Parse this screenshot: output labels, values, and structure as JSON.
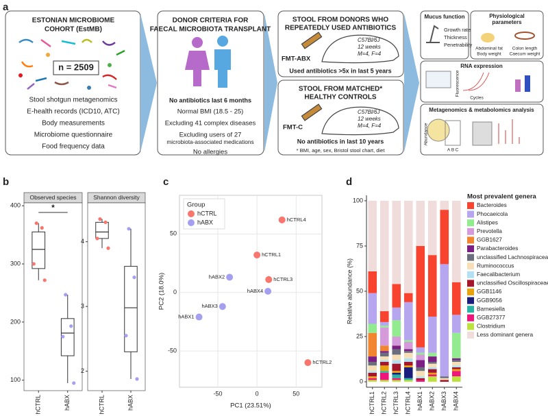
{
  "panel_labels": [
    "a",
    "b",
    "c",
    "d"
  ],
  "panel_a": {
    "cohort": {
      "title": [
        "ESTONIAN MICROBIOME",
        "COHORT (EstMB)"
      ],
      "n": "n = 2509",
      "items": [
        "Stool shotgun metagenomics",
        "E-health records (ICD10, ATC)",
        "Body measurements",
        "Microbiome questionnaire",
        "Food frequency data"
      ]
    },
    "donor_criteria": {
      "title": [
        "DONOR CRITERIA FOR",
        "FAECAL MICROBIOTA TRANSPLANT"
      ],
      "highlight": "No antibiotics last 6 months",
      "items": [
        "Normal BMI (18.5 - 25)",
        "Excluding 41 complex diseases",
        "Excluding users of 27",
        "microbiota-associated medications",
        "No allergies"
      ]
    },
    "abx_group": {
      "title": [
        "STOOL FROM DONORS WHO",
        "REPEATEDLY USED ANTIBIOTICS"
      ],
      "label": "FMT-ABX",
      "mouse": [
        "C57Bl/6J",
        "12 weeks",
        "M=4, F=4"
      ],
      "criterion": "Used antibiotics >5x in last 5 years"
    },
    "control_group": {
      "title": [
        "STOOL FROM MATCHED*",
        "HEALTHY CONTROLS"
      ],
      "label": "FMT-C",
      "mouse": [
        "C57Bl/6J",
        "12 weeks",
        "M=4, F=4"
      ],
      "criterion": "No antibiotics in last 10 years",
      "footnote": "* BMI, age, sex, Bristol stool chart, diet"
    },
    "outcomes": {
      "mucus": {
        "title": "Mucus function",
        "items": [
          "Growth rate",
          "Thickness",
          "Penetrability"
        ]
      },
      "physiology": {
        "title": [
          "Physiological",
          "parameters"
        ],
        "items": [
          "Abdominal fat",
          "Body weight",
          "Colon length",
          "Caecum weight"
        ]
      },
      "rna": {
        "title": "RNA expression",
        "axes": [
          "Fluorescence",
          "Cycles"
        ]
      },
      "omics": {
        "title": "Metagenomics & metabolomics analysis",
        "axis": "Abundance",
        "columns": [
          "A",
          "B",
          "C"
        ]
      }
    }
  },
  "chart_data": [
    {
      "type": "box",
      "title": "Observed species",
      "categories": [
        "hCTRL",
        "hABX"
      ],
      "point_colors": [
        "#f8766d",
        "#a59ff0"
      ],
      "boxes": [
        {
          "whisker_low": 272,
          "q1": 292,
          "median": 325,
          "q3": 355,
          "whisker_high": 370,
          "points": [
            370,
            362,
            300,
            272
          ]
        },
        {
          "whisker_low": 95,
          "q1": 142,
          "median": 181,
          "q3": 206,
          "whisker_high": 247,
          "points": [
            247,
            193,
            175,
            95
          ]
        }
      ],
      "annotation": "*",
      "ylim": [
        82,
        405
      ],
      "yticks": [
        100,
        200,
        300,
        400
      ]
    },
    {
      "type": "box",
      "title": "Shannon diversity",
      "categories": [
        "hCTRL",
        "hABX"
      ],
      "point_colors": [
        "#f8766d",
        "#a59ff0"
      ],
      "boxes": [
        {
          "whisker_low": 3.9,
          "q1": 4.05,
          "median": 4.15,
          "q3": 4.3,
          "whisker_high": 4.35,
          "points": [
            4.35,
            4.3,
            4.05,
            3.9
          ]
        },
        {
          "whisker_low": 1.88,
          "q1": 2.3,
          "median": 2.98,
          "q3": 3.62,
          "whisker_high": 4.2,
          "points": [
            4.2,
            3.45,
            2.55,
            1.88
          ]
        }
      ],
      "ylim": [
        1.7,
        4.6
      ],
      "yticks": [
        2,
        3,
        4
      ]
    },
    {
      "type": "scatter",
      "xlabel": "PC1 (23.51%)",
      "ylabel": "PC2 (18.0%)",
      "legend_title": "Group",
      "legend": "top-left",
      "grid": true,
      "series": [
        {
          "name": "hCTRL",
          "color": "#f8766d",
          "labels": [
            "hCTRL1",
            "hCTRL2",
            "hCTRL3",
            "hCTRL4"
          ],
          "x": [
            0,
            65,
            15,
            32
          ],
          "y": [
            32,
            -60,
            11,
            62
          ]
        },
        {
          "name": "hABX",
          "color": "#a59ff0",
          "labels": [
            "hABX1",
            "hABX2",
            "hABX3",
            "hABX4"
          ],
          "x": [
            -74,
            -35,
            -44,
            14
          ],
          "y": [
            -21,
            13,
            -12,
            1
          ]
        }
      ],
      "xlim": [
        -99,
        83
      ],
      "ylim": [
        -81,
        83
      ],
      "xticks": [
        -50,
        0,
        50
      ],
      "yticks": [
        -50,
        0,
        50
      ]
    },
    {
      "type": "stacked-bar",
      "ylabel": "Relative abundance (%)",
      "legend_title": "Most prevalent genera",
      "categories": [
        "hCTRL1",
        "hCTRL2",
        "hCTRL3",
        "hCTRL4",
        "hABX1",
        "hABX2",
        "hABX3",
        "hABX4"
      ],
      "series": [
        {
          "name": "Bacteroides",
          "color": "#f8432f",
          "values": [
            12,
            6,
            13,
            5,
            56,
            34,
            30,
            18
          ]
        },
        {
          "name": "Phocaeicola",
          "color": "#b5a6ef",
          "values": [
            17,
            2,
            7,
            21,
            3,
            20,
            62,
            10
          ]
        },
        {
          "name": "Alistipes",
          "color": "#92ec8f",
          "values": [
            5,
            1,
            9,
            1,
            1,
            2,
            0,
            14
          ]
        },
        {
          "name": "Prevotella",
          "color": "#d49ad9",
          "values": [
            0,
            10,
            5,
            4,
            3,
            0,
            0,
            0
          ]
        },
        {
          "name": "GGB1627",
          "color": "#f28630",
          "values": [
            13,
            3,
            0,
            0,
            0,
            0,
            0,
            0
          ]
        },
        {
          "name": "Parabacteroides",
          "color": "#7b1f82",
          "values": [
            3,
            1,
            2,
            1,
            4,
            3,
            0,
            1
          ]
        },
        {
          "name": "unclassified Lachnospiraceae",
          "color": "#6b6e7c",
          "values": [
            2,
            2,
            3,
            1,
            2,
            1,
            1,
            1
          ]
        },
        {
          "name": "Ruminococcus",
          "color": "#f6dfb6",
          "values": [
            3,
            2,
            3,
            3,
            3,
            2,
            1,
            2
          ]
        },
        {
          "name": "Faecalibacterium",
          "color": "#b3e1f2",
          "values": [
            1,
            1,
            2,
            2,
            1,
            1,
            0,
            1
          ]
        },
        {
          "name": "unclassified Oscillospiraceae",
          "color": "#a3162c",
          "values": [
            2,
            2,
            4,
            2,
            1,
            2,
            1,
            1
          ]
        },
        {
          "name": "GGB1146",
          "color": "#e8a20e",
          "values": [
            1,
            3,
            1,
            1,
            0,
            1,
            0,
            1
          ]
        },
        {
          "name": "GGB9056",
          "color": "#1b1f7b",
          "values": [
            0,
            0,
            1,
            6,
            0,
            0,
            0,
            0
          ]
        },
        {
          "name": "Barnesiella",
          "color": "#2bb3a3",
          "values": [
            0,
            1,
            2,
            1,
            0,
            0,
            0,
            0
          ]
        },
        {
          "name": "GGB27377",
          "color": "#f0157b",
          "values": [
            1,
            4,
            1,
            0,
            1,
            1,
            0,
            3
          ]
        },
        {
          "name": "Clostridium",
          "color": "#bde13f",
          "values": [
            1,
            1,
            1,
            1,
            0,
            3,
            0,
            3
          ]
        },
        {
          "name": "Less dominant genera",
          "color": "#efdcdb",
          "values": [
            39,
            61,
            46,
            51,
            25,
            30,
            5,
            45
          ]
        }
      ],
      "ylim": [
        -3,
        103
      ],
      "yticks": [
        0,
        25,
        50,
        75,
        100
      ]
    }
  ]
}
